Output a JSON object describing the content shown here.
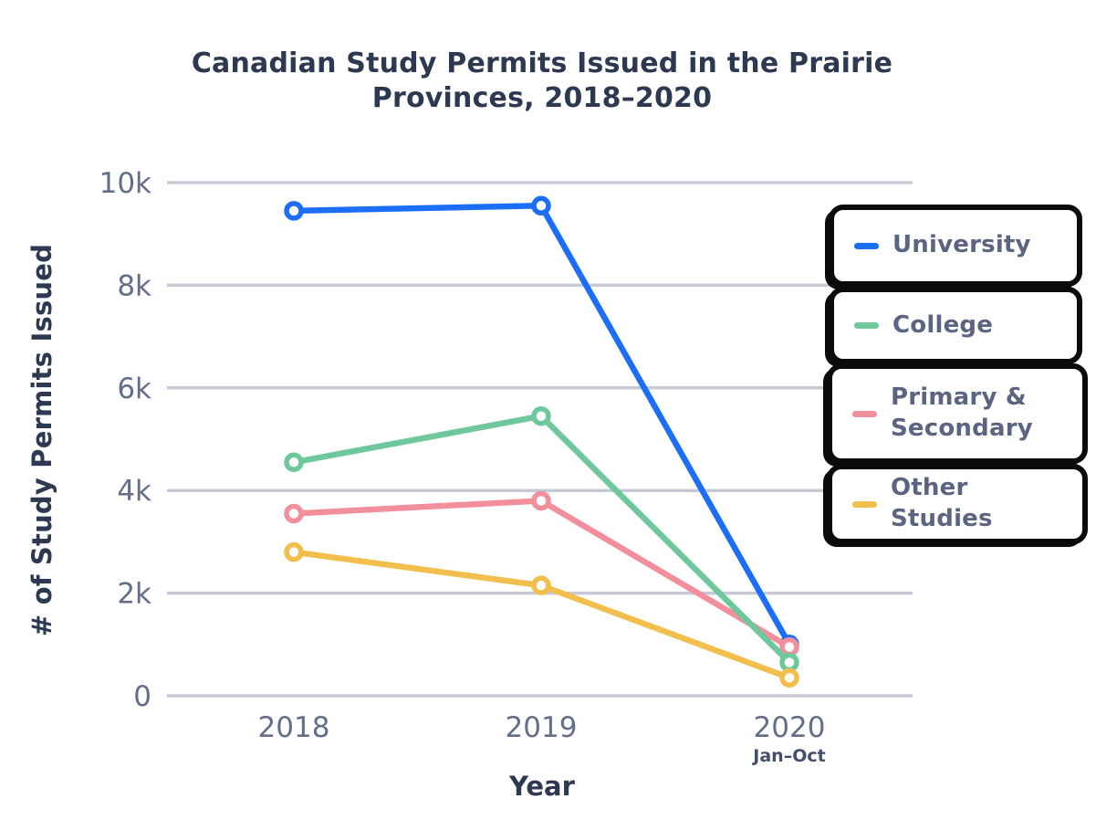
{
  "header": {
    "line1": "Canadian Study Permits Issued in the Prairie",
    "line2": "Provinces, 2018–2020"
  },
  "chart_data": {
    "type": "line",
    "title": "Canadian Study Permits Issued in the Prairie Provinces, 2018–2020",
    "xlabel": "Year",
    "ylabel": "# of Study Permits Issued",
    "categories": [
      "2018",
      "2019",
      "2020"
    ],
    "x_sublabels": [
      "",
      "",
      "Jan–Oct"
    ],
    "ylim": [
      0,
      10000
    ],
    "yticks": [
      0,
      2000,
      4000,
      6000,
      8000,
      10000
    ],
    "ytick_labels": [
      "0",
      "2k",
      "4k",
      "6k",
      "8k",
      "10k"
    ],
    "grid": true,
    "legend_position": "right-overlay",
    "series": [
      {
        "name": "University",
        "color": "#1b6ef5",
        "values": [
          9450,
          9550,
          1000
        ]
      },
      {
        "name": "College",
        "color": "#6fc79c",
        "values": [
          4550,
          5450,
          650
        ]
      },
      {
        "name": "Primary & Secondary",
        "color": "#f28f9c",
        "values": [
          3550,
          3800,
          950
        ]
      },
      {
        "name": "Other Studies",
        "color": "#f2bf4d",
        "values": [
          2800,
          2150,
          350
        ]
      }
    ]
  },
  "colors": {
    "title": "#2d3950",
    "axis_title": "#2d3950",
    "tick_label": "#646e88",
    "sub_label": "#454f6b",
    "gridline": "#c5cad6",
    "legend_text": "#5b6480",
    "legend_border": "#0b0b0b",
    "marker_fill": "#ffffff",
    "background": "#ffffff"
  }
}
